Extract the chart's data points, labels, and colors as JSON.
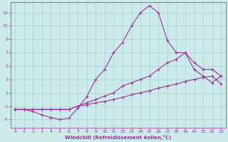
{
  "xlabel": "Windchill (Refroidissement éolien,°C)",
  "background_color": "#cceaea",
  "line_color": "#993399",
  "grid_color": "#aad4d4",
  "xlim": [
    -0.5,
    23.5
  ],
  "ylim": [
    -4.2,
    14.5
  ],
  "xticks": [
    0,
    1,
    2,
    3,
    4,
    5,
    6,
    7,
    8,
    9,
    10,
    11,
    12,
    13,
    14,
    15,
    16,
    17,
    18,
    19,
    20,
    21,
    22,
    23
  ],
  "yticks": [
    -3,
    -1,
    1,
    3,
    5,
    7,
    9,
    11,
    13
  ],
  "line1_x": [
    0,
    1,
    2,
    3,
    4,
    5,
    6,
    7,
    8,
    9,
    10,
    11,
    12,
    13,
    14,
    15,
    16,
    17,
    18,
    19,
    20,
    21,
    22,
    23
  ],
  "line1_y": [
    -1.5,
    -1.5,
    -1.8,
    -2.3,
    -2.7,
    -3.0,
    -2.8,
    -1.3,
    0.4,
    3.0,
    4.5,
    7.0,
    8.5,
    11.0,
    13.0,
    14.0,
    13.0,
    8.8,
    7.0,
    7.0,
    4.5,
    3.5,
    2.5,
    3.5
  ],
  "line2_x": [
    0,
    1,
    2,
    3,
    4,
    5,
    6,
    7,
    8,
    9,
    10,
    11,
    12,
    13,
    14,
    15,
    16,
    17,
    18,
    19,
    20,
    21,
    22,
    23
  ],
  "line2_y": [
    -1.5,
    -1.5,
    -1.5,
    -1.5,
    -1.5,
    -1.5,
    -1.5,
    -1.0,
    -0.5,
    0.0,
    0.5,
    1.0,
    2.0,
    2.5,
    3.0,
    3.5,
    4.5,
    5.5,
    6.0,
    7.0,
    5.5,
    4.5,
    4.5,
    3.5
  ],
  "line3_x": [
    0,
    1,
    2,
    3,
    4,
    5,
    6,
    7,
    8,
    9,
    10,
    11,
    12,
    13,
    14,
    15,
    16,
    17,
    18,
    19,
    20,
    21,
    22,
    23
  ],
  "line3_y": [
    -1.5,
    -1.5,
    -1.5,
    -1.5,
    -1.5,
    -1.5,
    -1.5,
    -1.0,
    -0.8,
    -0.5,
    -0.3,
    0.0,
    0.3,
    0.7,
    1.0,
    1.3,
    1.7,
    2.0,
    2.3,
    2.7,
    3.0,
    3.3,
    3.5,
    2.3
  ]
}
